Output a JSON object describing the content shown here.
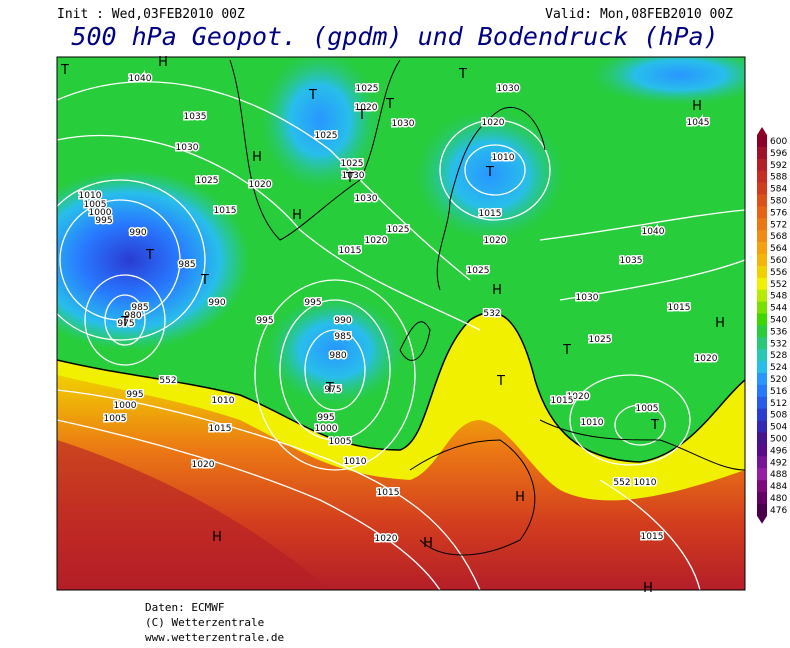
{
  "header": {
    "init": "Init : Wed,03FEB2010 00Z",
    "valid": "Valid: Mon,08FEB2010 00Z",
    "title": "500 hPa Geopot. (gpdm) und Bodendruck (hPa)"
  },
  "colorbar": {
    "labels": [
      "600",
      "596",
      "592",
      "588",
      "584",
      "580",
      "576",
      "572",
      "568",
      "564",
      "560",
      "556",
      "552",
      "548",
      "544",
      "540",
      "536",
      "532",
      "528",
      "524",
      "520",
      "516",
      "512",
      "508",
      "504",
      "500",
      "496",
      "492",
      "488",
      "484",
      "480",
      "476"
    ],
    "colors": [
      "#8c0028",
      "#a0102a",
      "#b41e28",
      "#c82d23",
      "#d23c1e",
      "#dc5019",
      "#e66414",
      "#eb7814",
      "#f08c14",
      "#f5a00f",
      "#f5b40a",
      "#f0d000",
      "#f0f000",
      "#b4eb00",
      "#78e100",
      "#3cd700",
      "#28cd3c",
      "#28c878",
      "#28c8b4",
      "#28beeb",
      "#2896ff",
      "#2878ff",
      "#285aeb",
      "#2a3cd2",
      "#3228b4",
      "#46148c",
      "#5a0a8c",
      "#781496",
      "#961ea5",
      "#7d0a7d",
      "#640064",
      "#4b004b"
    ]
  },
  "map": {
    "isobar_labels": [
      "1040",
      "1035",
      "1030",
      "1025",
      "1020",
      "1015",
      "1010",
      "1005",
      "1000",
      "995",
      "990",
      "985",
      "990",
      "995",
      "985",
      "980",
      "975",
      "995",
      "990",
      "985",
      "980",
      "975",
      "995",
      "1000",
      "1005",
      "1010",
      "1015",
      "1020",
      "995",
      "1000",
      "1005",
      "1010",
      "1015",
      "1020",
      "1025",
      "1020",
      "1030",
      "1025",
      "1025",
      "1030",
      "1030",
      "1025",
      "1020",
      "1015",
      "1030",
      "1020",
      "1010",
      "1015",
      "1020",
      "1025",
      "1030",
      "1035",
      "1040",
      "1045",
      "1015",
      "1025",
      "1020",
      "1020",
      "1015",
      "1010",
      "1005",
      "1010",
      "1015",
      "532",
      "552",
      "552"
    ],
    "pressure_centers": [
      "H",
      "T",
      "T",
      "H",
      "T",
      "T",
      "T",
      "H",
      "H",
      "T",
      "T",
      "T",
      "T",
      "T",
      "T",
      "H",
      "T",
      "T",
      "T",
      "H",
      "H",
      "H",
      "H",
      "H"
    ]
  },
  "footer": {
    "lines": [
      "Daten: ECMWF",
      "(C) Wetterzentrale",
      "www.wetterzentrale.de"
    ]
  }
}
